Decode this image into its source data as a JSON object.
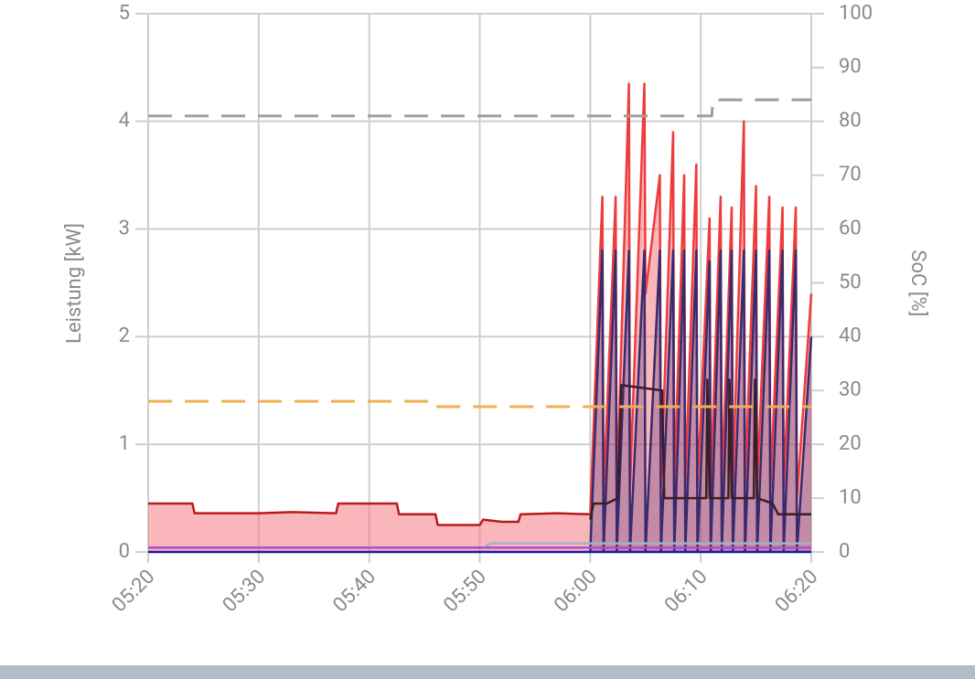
{
  "chart_data": {
    "type": "line",
    "y_label": "Leistung [kW]",
    "y2_label": "SoC [%]",
    "xlim": [
      320,
      380
    ],
    "xticks": [
      {
        "value": 320,
        "label": "05:20"
      },
      {
        "value": 330,
        "label": "05:30"
      },
      {
        "value": 340,
        "label": "05:40"
      },
      {
        "value": 350,
        "label": "05:50"
      },
      {
        "value": 360,
        "label": "06:00"
      },
      {
        "value": 370,
        "label": "06:10"
      },
      {
        "value": 380,
        "label": "06:20"
      }
    ],
    "ylim": [
      0,
      5
    ],
    "yticks": [
      0,
      1,
      2,
      3,
      4,
      5
    ],
    "y2lim": [
      0,
      100
    ],
    "y2ticks": [
      0,
      10,
      20,
      30,
      40,
      50,
      60,
      70,
      80,
      90,
      100
    ],
    "grid": true,
    "series": [
      {
        "color": "#b71c1c",
        "fill": "rgba(244,110,120,0.5)",
        "x": [
          320,
          324,
          324.2,
          330,
          333,
          337,
          337.2,
          340,
          342.5,
          342.7,
          346,
          346.2,
          350,
          350.3,
          352,
          353.5,
          353.7,
          357,
          360
        ],
        "values": [
          0.45,
          0.45,
          0.36,
          0.36,
          0.37,
          0.36,
          0.45,
          0.45,
          0.45,
          0.35,
          0.35,
          0.25,
          0.25,
          0.3,
          0.28,
          0.28,
          0.35,
          0.36,
          0.35
        ]
      },
      {
        "color": "#ef3b3b",
        "fill": "rgba(244,110,120,0.5)",
        "x": [
          360,
          361.1,
          361.2,
          362.3,
          362.4,
          363.5,
          363.6,
          364.9,
          365,
          366.3,
          366.4,
          367.5,
          367.6,
          368.5,
          368.6,
          369.6,
          369.7,
          370.8,
          370.9,
          371.8,
          371.9,
          372.8,
          372.9,
          373.9,
          374,
          375,
          375.1,
          376.2,
          376.3,
          377.4,
          377.5,
          378.6,
          378.7,
          380
        ],
        "values": [
          0.35,
          3.3,
          0.5,
          3.3,
          0.5,
          4.35,
          0.6,
          4.35,
          2.4,
          3.5,
          0.6,
          3.9,
          0.6,
          3.5,
          0.6,
          3.6,
          0.6,
          3.1,
          0.6,
          3.3,
          0.6,
          3.2,
          0.6,
          4.0,
          0.6,
          3.4,
          0.6,
          3.3,
          0.6,
          3.2,
          0.6,
          3.2,
          0.5,
          2.4
        ]
      },
      {
        "color": "#3a2a6e",
        "fill": "rgba(70,40,120,0.3)",
        "x": [
          360,
          361.1,
          361.2,
          362.3,
          362.4,
          363.5,
          363.6,
          364.9,
          365,
          366.3,
          366.4,
          367.5,
          367.6,
          368.5,
          368.6,
          369.6,
          369.7,
          370.8,
          370.9,
          371.8,
          371.9,
          372.8,
          372.9,
          373.9,
          374,
          375,
          375.1,
          376.2,
          376.3,
          377.4,
          377.5,
          378.6,
          378.7,
          380
        ],
        "values": [
          0,
          2.8,
          0,
          2.8,
          0,
          2.8,
          0,
          2.8,
          0,
          2.8,
          0,
          2.8,
          0,
          2.8,
          0,
          2.8,
          0,
          2.7,
          0,
          2.8,
          0,
          2.8,
          0,
          2.8,
          0,
          2.8,
          0,
          2.8,
          0,
          2.8,
          0,
          2.8,
          0,
          2.0
        ]
      },
      {
        "color": "#3b1e24",
        "x": [
          360,
          360.3,
          361.5,
          362.5,
          362.8,
          366.5,
          366.7,
          370.5,
          370.6,
          370.8,
          372.5,
          372.6,
          372.8,
          374.8,
          374.9,
          375.1,
          376.5,
          377,
          380
        ],
        "values": [
          0.3,
          0.45,
          0.45,
          0.5,
          1.55,
          1.5,
          0.5,
          0.5,
          1.6,
          0.5,
          0.5,
          1.6,
          0.5,
          0.5,
          1.6,
          0.5,
          0.45,
          0.35,
          0.35
        ]
      },
      {
        "color": "#9fb3c8",
        "x": [
          350.5,
          351,
          380
        ],
        "values": [
          0.05,
          0.08,
          0.08
        ]
      },
      {
        "color": "#b04cc8",
        "x": [
          320,
          380
        ],
        "values": [
          0.04,
          0.04
        ]
      },
      {
        "color": "#1a1aa8",
        "x": [
          320,
          380
        ],
        "values": [
          0,
          0
        ]
      },
      {
        "color": "#9e9e9e",
        "dash": true,
        "axis": "y2",
        "x": [
          320,
          371,
          371.1,
          380
        ],
        "values": [
          81,
          81,
          84,
          84
        ]
      },
      {
        "color": "#f0b050",
        "dash": true,
        "axis": "y2",
        "x": [
          320,
          345.5,
          345.6,
          380
        ],
        "values": [
          28,
          28,
          27,
          27
        ]
      }
    ]
  }
}
